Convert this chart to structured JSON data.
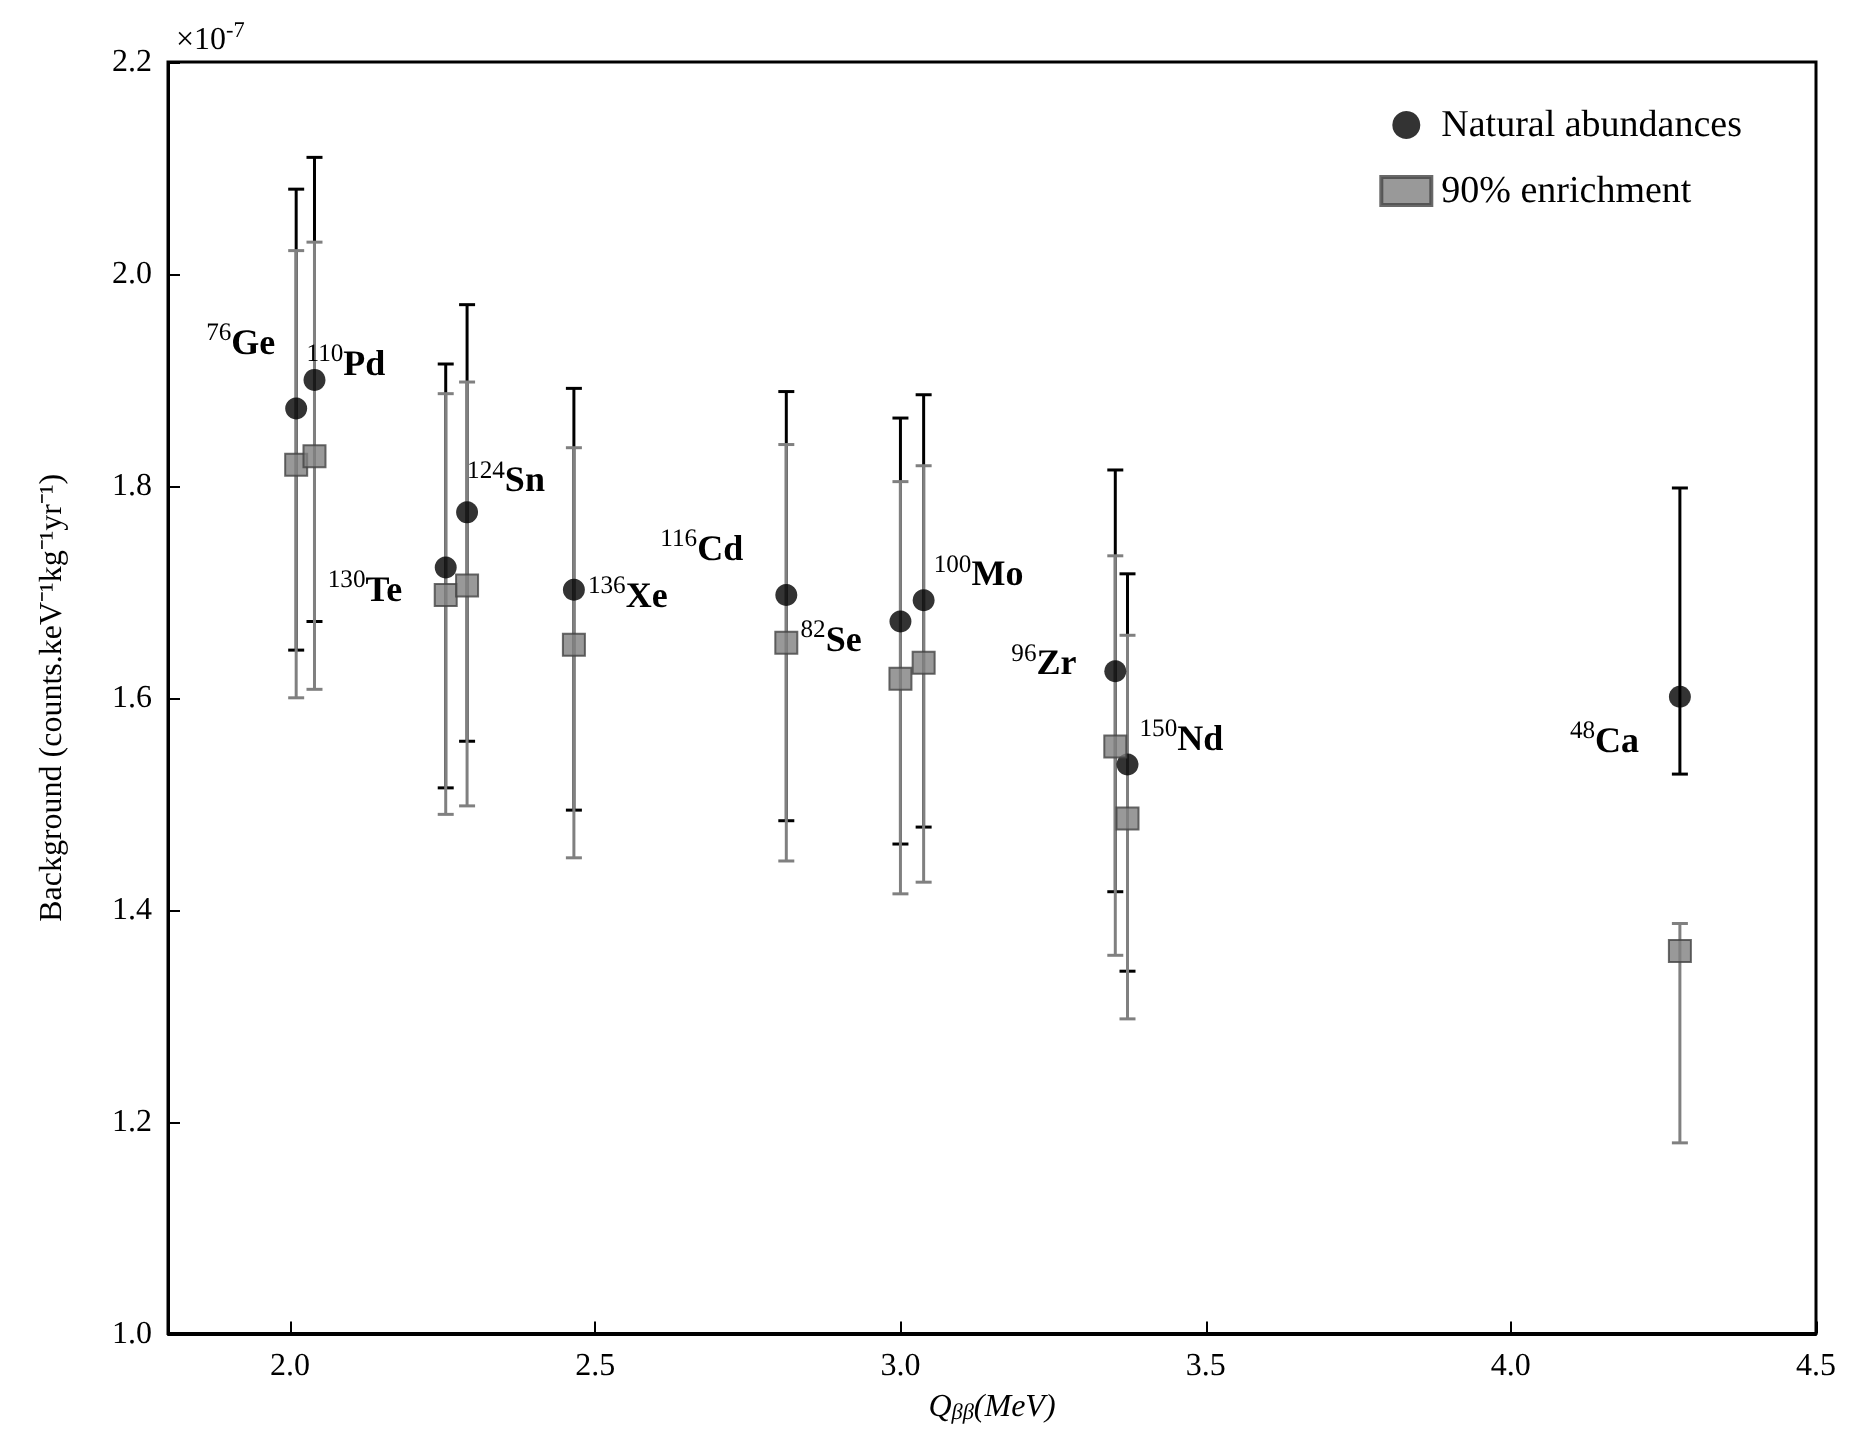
{
  "chart_data": {
    "type": "scatter",
    "xlabel": "Q$_{ββ}$(MeV)",
    "ylabel": "Background (counts.keV⁻¹kg⁻¹yr⁻¹)",
    "x": [
      2.01,
      2.04,
      2.255,
      2.29,
      2.465,
      2.813,
      3.0,
      3.038,
      3.352,
      3.372,
      4.277
    ],
    "series": [
      {
        "name": "Natural abundances",
        "color": "#000000",
        "marker": "circle",
        "values": [
          1.873,
          1.9,
          1.723,
          1.775,
          1.702,
          1.697,
          1.672,
          1.692,
          1.625,
          1.537,
          1.601
        ],
        "errors": [
          [
            1.645,
            2.08
          ],
          [
            1.672,
            2.11
          ],
          [
            1.515,
            1.915
          ],
          [
            1.559,
            1.971
          ],
          [
            1.494,
            1.892
          ],
          [
            1.484,
            1.889
          ],
          [
            1.462,
            1.864
          ],
          [
            1.478,
            1.886
          ],
          [
            1.417,
            1.815
          ],
          [
            1.342,
            1.717
          ],
          [
            1.528,
            1.798
          ]
        ]
      },
      {
        "name": "90% enrichment",
        "color": "#808080",
        "marker": "square",
        "values": [
          1.82,
          1.828,
          1.697,
          1.706,
          1.65,
          1.652,
          1.618,
          1.633,
          1.554,
          1.486,
          1.361
        ],
        "errors": [
          [
            1.6,
            2.022
          ],
          [
            1.608,
            2.03
          ],
          [
            1.49,
            1.887
          ],
          [
            1.498,
            1.898
          ],
          [
            1.449,
            1.836
          ],
          [
            1.446,
            1.839
          ],
          [
            1.415,
            1.804
          ],
          [
            1.426,
            1.819
          ],
          [
            1.357,
            1.734
          ],
          [
            1.297,
            1.659
          ],
          [
            1.18,
            1.387
          ]
        ]
      }
    ],
    "xlim": [
      1.8,
      4.5
    ],
    "xticks": [
      {
        "value": 2,
        "label": "2.0"
      },
      2.5,
      {
        "value": 3,
        "label": "3.0"
      },
      3.5,
      {
        "value": 4,
        "label": "4.0"
      },
      4.5
    ],
    "ylim": [
      1.0,
      2.2
    ],
    "yticks": [
      {
        "value": 1,
        "label": "1.0"
      },
      1.2,
      1.4,
      1.6,
      1.8,
      {
        "value": 2,
        "label": "2.0"
      },
      2.2
    ],
    "grid": false,
    "legend": "top right",
    "annotations": [
      "×10$^{-7}$",
      {
        "text": "$^{76}$Ge",
        "x": 2.01,
        "y": 1.873
      },
      {
        "text": "$^{110}$Pd",
        "x": 2.04,
        "y": 1.9
      },
      {
        "text": "$^{124}$Sn",
        "x": 2.29,
        "y": 1.775
      },
      {
        "text": "$^{130}$Te",
        "x": 2.255,
        "y": 1.723
      },
      {
        "text": "$^{136}$Xe",
        "x": 2.465,
        "y": 1.702
      },
      {
        "text": "$^{116}$Cd",
        "x": 2.813,
        "y": 1.697
      },
      {
        "text": "$^{82}$Se",
        "x": 3.0,
        "y": 1.672
      },
      {
        "text": "$^{100}$Mo",
        "x": 3.038,
        "y": 1.692
      },
      {
        "text": "$^{96}$Zr",
        "x": 3.352,
        "y": 1.625
      },
      {
        "text": "$^{150}$Nd",
        "x": 3.372,
        "y": 1.537
      },
      {
        "text": "$^{48}$Ca",
        "x": 4.277,
        "y": 1.601
      }
    ]
  }
}
